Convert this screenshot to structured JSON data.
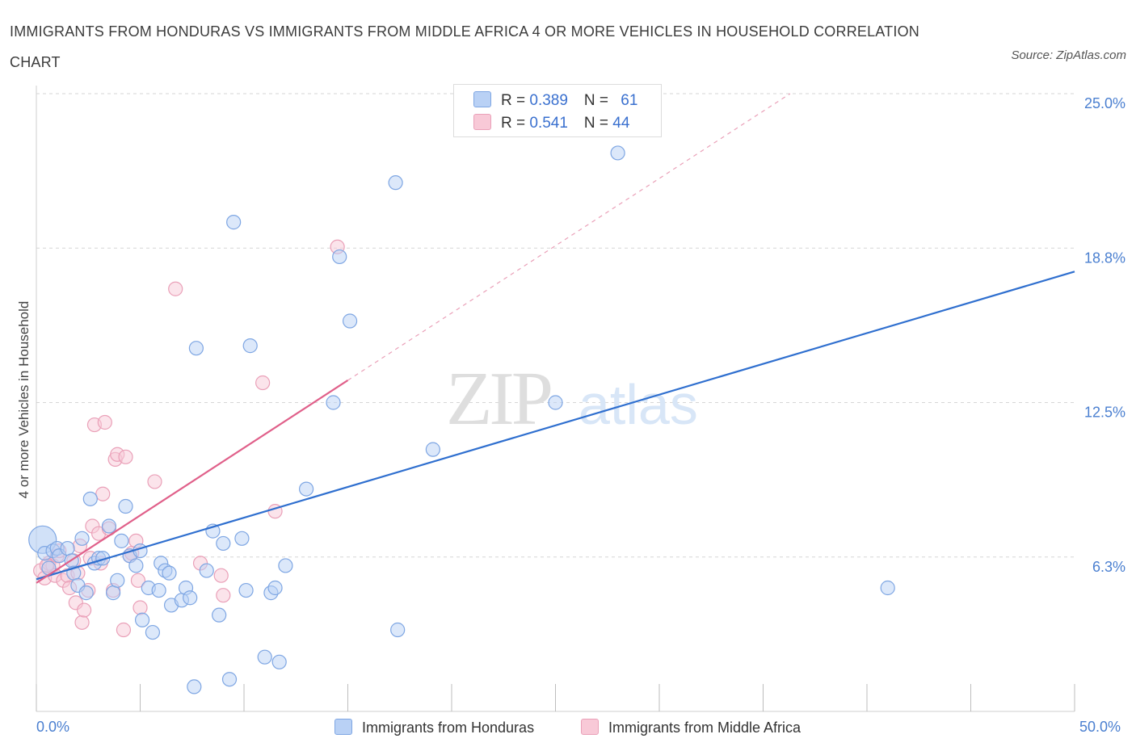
{
  "title": "IMMIGRANTS FROM HONDURAS VS IMMIGRANTS FROM MIDDLE AFRICA 4 OR MORE VEHICLES IN HOUSEHOLD CORRELATION CHART",
  "source": "Source: ZipAtlas.com",
  "watermark": {
    "zip": "ZIP",
    "atlas": "atlas"
  },
  "legend": {
    "honduras": {
      "r_label": "R = ",
      "r_value": "0.389",
      "n_label": "N = ",
      "n_value": "61"
    },
    "middle_africa": {
      "r_label": "R = ",
      "r_value": "0.541",
      "n_label": "N = ",
      "n_value": "44"
    }
  },
  "colors": {
    "honduras_fill": "#b9d1f5",
    "honduras_stroke": "#7ea6e3",
    "honduras_line": "#2f6fcf",
    "africa_fill": "#f8c9d7",
    "africa_stroke": "#eaa0b8",
    "africa_line": "#e0608a",
    "grid": "#d6d6d6",
    "tick_text": "#4a7fd0"
  },
  "chart_data": {
    "type": "scatter",
    "title": "IMMIGRANTS FROM HONDURAS VS IMMIGRANTS FROM MIDDLE AFRICA 4 OR MORE VEHICLES IN HOUSEHOLD CORRELATION CHART",
    "xlabel": "",
    "ylabel": "4 or more Vehicles in Household",
    "xlim": [
      0,
      50
    ],
    "ylim": [
      0,
      25
    ],
    "x_tick_labels": [
      "0.0%",
      "50.0%"
    ],
    "y_ticks": [
      {
        "value": 25.0,
        "label": "25.0%"
      },
      {
        "value": 18.75,
        "label": "18.8%"
      },
      {
        "value": 12.5,
        "label": "12.5%"
      },
      {
        "value": 6.25,
        "label": "6.3%"
      }
    ],
    "grid": true,
    "legend_position": "top-center",
    "series": [
      {
        "name": "Immigrants from Honduras",
        "points": [
          [
            0.3,
            6.95
          ],
          [
            0.4,
            6.4
          ],
          [
            0.6,
            5.8
          ],
          [
            0.8,
            6.5
          ],
          [
            1.0,
            6.6
          ],
          [
            1.1,
            6.3
          ],
          [
            1.5,
            6.6
          ],
          [
            1.7,
            6.1
          ],
          [
            1.8,
            5.6
          ],
          [
            2.0,
            5.1
          ],
          [
            2.2,
            7.0
          ],
          [
            2.4,
            4.8
          ],
          [
            2.6,
            8.6
          ],
          [
            2.8,
            6.0
          ],
          [
            3.0,
            6.2
          ],
          [
            3.2,
            6.2
          ],
          [
            3.5,
            7.5
          ],
          [
            3.7,
            4.8
          ],
          [
            3.9,
            5.3
          ],
          [
            4.1,
            6.9
          ],
          [
            4.3,
            8.3
          ],
          [
            4.5,
            6.3
          ],
          [
            4.8,
            5.9
          ],
          [
            5.0,
            6.5
          ],
          [
            5.1,
            3.7
          ],
          [
            5.4,
            5.0
          ],
          [
            5.6,
            3.2
          ],
          [
            5.9,
            4.9
          ],
          [
            6.0,
            6.0
          ],
          [
            6.2,
            5.7
          ],
          [
            6.4,
            5.6
          ],
          [
            6.5,
            4.3
          ],
          [
            7.0,
            4.5
          ],
          [
            7.2,
            5.0
          ],
          [
            7.4,
            4.6
          ],
          [
            7.6,
            1.0
          ],
          [
            7.7,
            14.7
          ],
          [
            8.2,
            5.7
          ],
          [
            8.5,
            7.3
          ],
          [
            8.8,
            3.9
          ],
          [
            9.0,
            6.8
          ],
          [
            9.3,
            1.3
          ],
          [
            9.5,
            19.8
          ],
          [
            9.9,
            7.0
          ],
          [
            10.1,
            4.9
          ],
          [
            10.3,
            14.8
          ],
          [
            11.0,
            2.2
          ],
          [
            11.3,
            4.8
          ],
          [
            11.5,
            5.0
          ],
          [
            11.7,
            2.0
          ],
          [
            12.0,
            5.9
          ],
          [
            13.0,
            9.0
          ],
          [
            14.3,
            12.5
          ],
          [
            14.6,
            18.4
          ],
          [
            15.1,
            15.8
          ],
          [
            17.3,
            21.4
          ],
          [
            17.4,
            3.3
          ],
          [
            19.1,
            10.6
          ],
          [
            25.0,
            12.5
          ],
          [
            28.0,
            22.6
          ],
          [
            41.0,
            5.0
          ]
        ],
        "sizes": {
          "[0.3, 6.95]": "large"
        },
        "trend_line": {
          "x": [
            0,
            50
          ],
          "y": [
            5.35,
            17.8
          ]
        }
      },
      {
        "name": "Immigrants from Middle Africa",
        "points": [
          [
            0.2,
            5.7
          ],
          [
            0.4,
            5.4
          ],
          [
            0.6,
            6.0
          ],
          [
            0.8,
            5.9
          ],
          [
            0.9,
            5.5
          ],
          [
            1.0,
            6.3
          ],
          [
            1.1,
            6.5
          ],
          [
            1.3,
            5.3
          ],
          [
            1.5,
            5.5
          ],
          [
            1.6,
            5.0
          ],
          [
            1.8,
            6.1
          ],
          [
            1.9,
            4.4
          ],
          [
            2.0,
            5.6
          ],
          [
            2.1,
            6.7
          ],
          [
            2.2,
            3.6
          ],
          [
            2.3,
            4.1
          ],
          [
            2.5,
            4.9
          ],
          [
            2.6,
            6.2
          ],
          [
            2.7,
            7.5
          ],
          [
            2.8,
            11.6
          ],
          [
            3.0,
            7.2
          ],
          [
            3.1,
            6.0
          ],
          [
            3.2,
            8.8
          ],
          [
            3.3,
            11.7
          ],
          [
            3.5,
            7.4
          ],
          [
            3.7,
            4.9
          ],
          [
            3.8,
            10.2
          ],
          [
            3.9,
            10.4
          ],
          [
            4.2,
            3.3
          ],
          [
            4.3,
            10.3
          ],
          [
            4.5,
            6.3
          ],
          [
            4.6,
            6.4
          ],
          [
            4.8,
            6.9
          ],
          [
            4.9,
            5.3
          ],
          [
            5.0,
            4.2
          ],
          [
            5.7,
            9.3
          ],
          [
            6.7,
            17.1
          ],
          [
            7.9,
            6.0
          ],
          [
            8.9,
            5.5
          ],
          [
            9.0,
            4.7
          ],
          [
            10.9,
            13.3
          ],
          [
            11.5,
            8.1
          ],
          [
            14.5,
            18.8
          ],
          [
            0.5,
            5.9
          ]
        ],
        "trend_line": {
          "x": [
            0,
            15
          ],
          "y": [
            5.2,
            13.4
          ]
        },
        "trend_line_extension": {
          "x": [
            15,
            36.3
          ],
          "y": [
            13.4,
            25.0
          ]
        }
      }
    ]
  },
  "bottom_legend": [
    "Immigrants from Honduras",
    "Immigrants from Middle Africa"
  ],
  "x_axis_labels": {
    "left": "0.0%",
    "right": "50.0%"
  }
}
